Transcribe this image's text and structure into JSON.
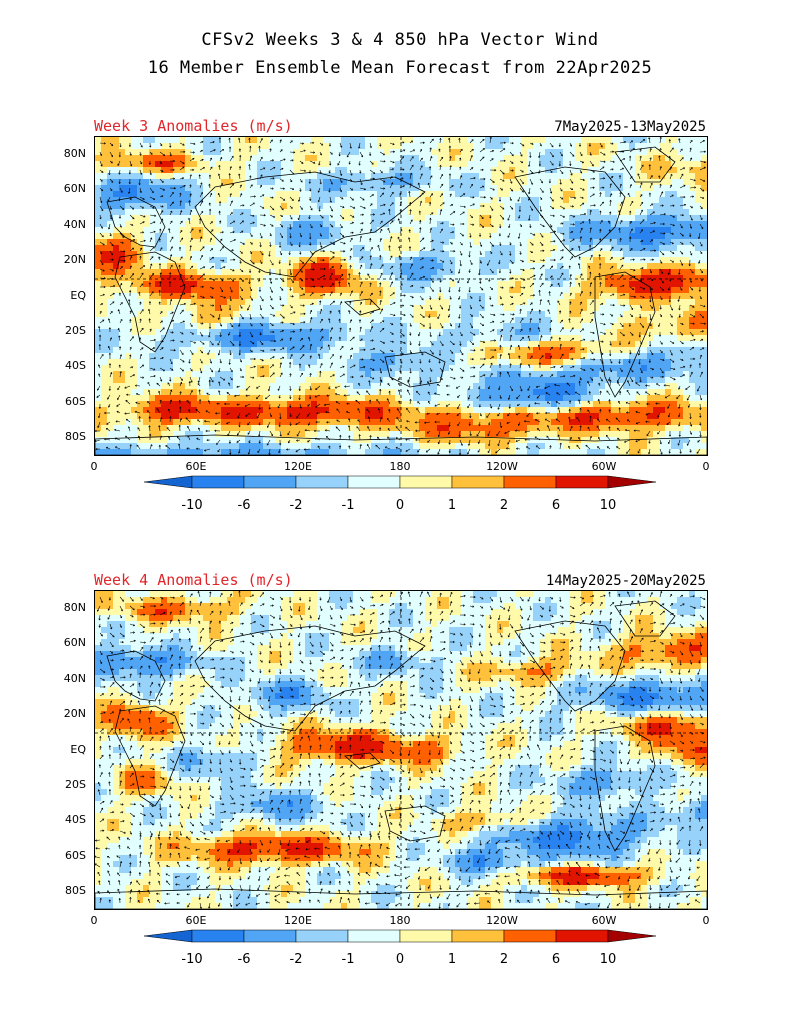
{
  "header": {
    "line1": "CFSv2 Weeks 3 & 4 850 hPa Vector Wind",
    "line2": "16 Member Ensemble Mean Forecast from 22Apr2025"
  },
  "panels": [
    {
      "label": "Week 3 Anomalies (m/s)",
      "dates": "7May2025-13May2025"
    },
    {
      "label": "Week 4 Anomalies (m/s)",
      "dates": "14May2025-20May2025"
    }
  ],
  "lat_ticks": [
    "80N",
    "60N",
    "40N",
    "20N",
    "EQ",
    "20S",
    "40S",
    "60S",
    "80S"
  ],
  "lon_ticks": [
    "0",
    "60E",
    "120E",
    "180",
    "120W",
    "60W",
    "0"
  ],
  "colorbar": {
    "labels": [
      "-10",
      "-6",
      "-2",
      "-1",
      "0",
      "1",
      "2",
      "6",
      "10"
    ],
    "colors": [
      "#1464d2",
      "#2882f0",
      "#50a5f5",
      "#96d2fa",
      "#e1ffff",
      "#fffaaa",
      "#ffc03c",
      "#ff6000",
      "#e11400",
      "#a50000"
    ]
  }
}
